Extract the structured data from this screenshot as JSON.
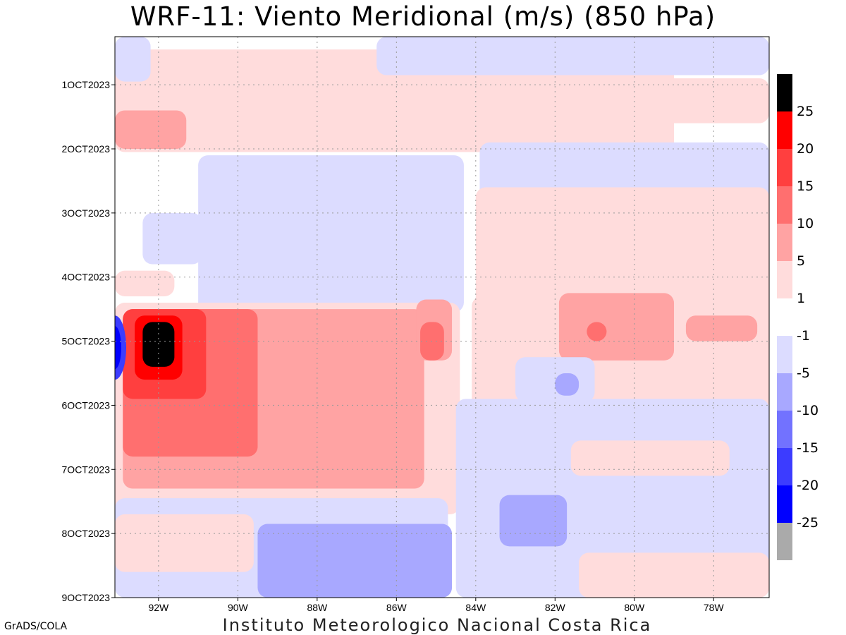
{
  "chart_data": {
    "type": "heatmap",
    "title": "WRF-11: Viento Meridional (m/s) (850 hPa)",
    "subtitle": "Instituto Meteorologico Nacional Costa Rica",
    "xlabel": "",
    "ylabel": "",
    "x_ticks": [
      "92W",
      "90W",
      "88W",
      "86W",
      "84W",
      "82W",
      "80W",
      "78W"
    ],
    "x_tick_values": [
      -92,
      -90,
      -88,
      -86,
      -84,
      -82,
      -80,
      -78
    ],
    "xlim": [
      -93.1,
      -76.6
    ],
    "y_ticks": [
      "1OCT2023",
      "2OCT2023",
      "3OCT2023",
      "4OCT2023",
      "5OCT2023",
      "6OCT2023",
      "7OCT2023",
      "8OCT2023",
      "9OCT2023"
    ],
    "y_tick_values": [
      1,
      2,
      3,
      4,
      5,
      6,
      7,
      8,
      9
    ],
    "ylim": [
      0.25,
      9
    ],
    "grid": true,
    "colorbar": {
      "labels": [
        "25",
        "20",
        "15",
        "10",
        "5",
        "1",
        "-1",
        "-5",
        "-10",
        "-15",
        "-20",
        "-25"
      ],
      "colors": [
        "#000000",
        "#ff0000",
        "#ff3f3f",
        "#ff6f6f",
        "#ffa3a3",
        "#ffdcdc",
        "#ffffff",
        "#dcdcff",
        "#a8a8ff",
        "#7272ff",
        "#3c3cff",
        "#0000ff",
        "#aaaaaa"
      ]
    },
    "bands": [
      {
        "level": "1",
        "t0": 0.45,
        "t1": 2.05,
        "x0": -93.1,
        "x1": -79.0
      },
      {
        "level": "1",
        "t0": 0.9,
        "t1": 1.6,
        "x0": -80.2,
        "x1": -76.6
      },
      {
        "level": "5",
        "t0": 1.4,
        "t1": 2.0,
        "x0": -93.1,
        "x1": -91.3
      },
      {
        "level": "-1",
        "t0": 0.25,
        "t1": 0.95,
        "x0": -93.1,
        "x1": -92.2
      },
      {
        "level": "-1",
        "t0": 0.25,
        "t1": 0.85,
        "x0": -86.5,
        "x1": -76.6
      },
      {
        "level": "-1",
        "t0": 2.1,
        "t1": 4.55,
        "x0": -91.0,
        "x1": -84.3
      },
      {
        "level": "-1",
        "t0": 1.9,
        "t1": 3.1,
        "x0": -83.9,
        "x1": -76.6
      },
      {
        "level": "-1",
        "t0": 3.0,
        "t1": 3.8,
        "x0": -92.4,
        "x1": -90.9
      },
      {
        "level": "1",
        "t0": 2.6,
        "t1": 4.55,
        "x0": -84.0,
        "x1": -76.6
      },
      {
        "level": "1",
        "t0": 3.9,
        "t1": 4.3,
        "x0": -93.1,
        "x1": -91.6
      },
      {
        "level": "1",
        "t0": 4.4,
        "t1": 7.7,
        "x0": -93.1,
        "x1": -84.4
      },
      {
        "level": "1",
        "t0": 4.3,
        "t1": 6.1,
        "x0": -84.1,
        "x1": -76.6
      },
      {
        "level": "5",
        "t0": 4.5,
        "t1": 7.3,
        "x0": -92.9,
        "x1": -85.3
      },
      {
        "level": "5",
        "t0": 4.35,
        "t1": 5.3,
        "x0": -85.5,
        "x1": -84.6
      },
      {
        "level": "5",
        "t0": 4.25,
        "t1": 5.3,
        "x0": -81.9,
        "x1": -79.0
      },
      {
        "level": "5",
        "t0": 4.6,
        "t1": 5.0,
        "x0": -78.7,
        "x1": -76.9
      },
      {
        "level": "10",
        "t0": 4.5,
        "t1": 6.8,
        "x0": -92.9,
        "x1": -89.5
      },
      {
        "level": "10",
        "t0": 4.7,
        "t1": 5.3,
        "x0": -85.4,
        "x1": -84.8
      },
      {
        "level": "10",
        "t0": 4.7,
        "t1": 5.0,
        "x0": -81.2,
        "x1": -80.7
      },
      {
        "level": "15",
        "t0": 4.5,
        "t1": 5.9,
        "x0": -92.9,
        "x1": -90.8
      },
      {
        "level": "20",
        "t0": 4.6,
        "t1": 5.6,
        "x0": -92.6,
        "x1": -91.4
      },
      {
        "level": "25",
        "t0": 4.7,
        "t1": 5.4,
        "x0": -92.4,
        "x1": -91.6
      },
      {
        "level": "-1",
        "t0": 5.25,
        "t1": 5.95,
        "x0": -83.0,
        "x1": -81.0
      },
      {
        "level": "-5",
        "t0": 5.5,
        "t1": 5.85,
        "x0": -82.0,
        "x1": -81.4
      },
      {
        "level": "-1",
        "t0": 5.9,
        "t1": 9,
        "x0": -84.5,
        "x1": -76.6
      },
      {
        "level": "-1",
        "t0": 7.45,
        "t1": 9,
        "x0": -93.1,
        "x1": -84.7
      },
      {
        "level": "1",
        "t0": 6.55,
        "t1": 7.1,
        "x0": -81.6,
        "x1": -77.6
      },
      {
        "level": "1",
        "t0": 7.7,
        "t1": 8.6,
        "x0": -93.1,
        "x1": -89.6
      },
      {
        "level": "-5",
        "t0": 7.85,
        "t1": 9,
        "x0": -89.5,
        "x1": -84.6
      },
      {
        "level": "-5",
        "t0": 7.4,
        "t1": 8.2,
        "x0": -83.4,
        "x1": -81.7
      },
      {
        "level": "1",
        "t0": 8.3,
        "t1": 9,
        "x0": -81.4,
        "x1": -76.6
      }
    ],
    "edge_negative": {
      "x": -93.1,
      "t0": 4.6,
      "t1": 5.6
    }
  }
}
